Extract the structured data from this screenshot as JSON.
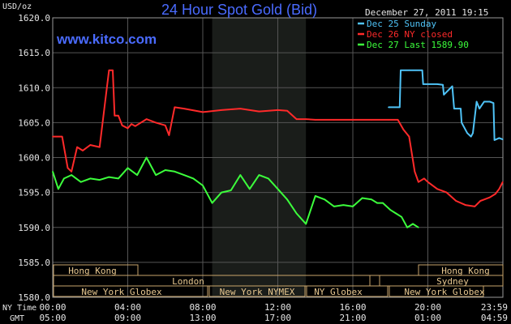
{
  "header": {
    "title": "24 Hour Spot Gold (Bid)",
    "website": "www.kitco.com",
    "timestamp": "December 27, 2011 19:15",
    "y_unit": "USD/oz"
  },
  "legend": [
    {
      "label": "Dec 25 Sunday",
      "color": "#4fc3f7"
    },
    {
      "label": "Dec 26 NY closed",
      "color": "#ff2a2a"
    },
    {
      "label": "Dec 27 Last 1589.90",
      "color": "#3cff3c"
    }
  ],
  "time_axes": {
    "ny_label": "NY Time",
    "gmt_label": "GMT",
    "ny_ticks": [
      "00:00",
      "04:00",
      "08:00",
      "12:00",
      "16:00",
      "20:00",
      "23:59"
    ],
    "gmt_ticks": [
      "05:00",
      "09:00",
      "13:00",
      "17:00",
      "21:00",
      "01:00",
      "04:59"
    ]
  },
  "sessions": {
    "hong_kong_1": "Hong Kong",
    "hong_kong_2": "Hong Kong",
    "london": "London",
    "sydney": "Sydney",
    "nyg_1": "New York Globex",
    "nymex": "New York NYMEX",
    "nyg_2": "NY Globex",
    "nyg_3": "New York Globex"
  },
  "chart_data": {
    "type": "line",
    "ylim": [
      1580,
      1620
    ],
    "xlim": [
      0,
      24
    ],
    "yticks": [
      "1620.0",
      "1615.0",
      "1610.0",
      "1605.0",
      "1600.0",
      "1595.0",
      "1590.0",
      "1585.0",
      "1580.0"
    ],
    "shaded_hours": [
      8.5,
      13.5
    ],
    "series": [
      {
        "name": "Dec 25 Sunday",
        "color": "#4fc3f7",
        "x": [
          17.9,
          18.5,
          18.55,
          19.0,
          19.7,
          19.75,
          20.5,
          20.8,
          20.85,
          21.3,
          21.4,
          21.75,
          21.8,
          22.1,
          22.3,
          22.4,
          22.6,
          22.75,
          23.0,
          23.3,
          23.5,
          23.55,
          23.8,
          23.99
        ],
        "y": [
          1607.2,
          1607.2,
          1612.5,
          1612.5,
          1612.5,
          1610.5,
          1610.5,
          1610.4,
          1609.0,
          1610.2,
          1607.0,
          1607.0,
          1605.0,
          1603.5,
          1603.0,
          1603.5,
          1608.0,
          1607.0,
          1608.0,
          1608.0,
          1607.8,
          1602.5,
          1602.8,
          1602.6
        ]
      },
      {
        "name": "Dec 26 NY closed",
        "color": "#ff2a2a",
        "x": [
          0,
          0.5,
          0.8,
          1.0,
          1.3,
          1.6,
          2.0,
          2.5,
          3.0,
          3.2,
          3.3,
          3.5,
          3.7,
          4.0,
          4.2,
          4.4,
          5.0,
          5.5,
          6.0,
          6.2,
          6.5,
          7.0,
          8.0,
          9.0,
          10.0,
          11.0,
          12.0,
          12.5,
          13.0,
          13.5,
          14.0,
          15.0,
          16.0,
          17.0,
          17.9,
          18.4,
          18.7,
          19.0,
          19.3,
          19.5,
          19.8,
          20.0,
          20.5,
          21.0,
          21.5,
          22.0,
          22.5,
          22.8,
          23.0,
          23.3,
          23.6,
          23.8,
          23.99
        ],
        "y": [
          1603.0,
          1603.0,
          1598.5,
          1598.0,
          1601.5,
          1601.0,
          1601.8,
          1601.5,
          1612.5,
          1612.5,
          1606.0,
          1606.0,
          1604.6,
          1604.2,
          1604.8,
          1604.5,
          1605.5,
          1605.0,
          1604.6,
          1603.2,
          1607.2,
          1607.0,
          1606.5,
          1606.8,
          1607.0,
          1606.6,
          1606.8,
          1606.7,
          1605.5,
          1605.5,
          1605.4,
          1605.4,
          1605.4,
          1605.4,
          1605.4,
          1605.4,
          1604.0,
          1603.0,
          1598.0,
          1596.5,
          1597.0,
          1596.5,
          1595.5,
          1595.0,
          1593.8,
          1593.2,
          1593.0,
          1593.8,
          1594.0,
          1594.3,
          1594.8,
          1595.5,
          1596.5
        ]
      },
      {
        "name": "Dec 27 Last 1589.90",
        "color": "#3cff3c",
        "x": [
          0,
          0.3,
          0.6,
          1.0,
          1.5,
          2.0,
          2.5,
          3.0,
          3.5,
          4.0,
          4.5,
          5.0,
          5.5,
          6.0,
          6.5,
          7.0,
          7.5,
          8.0,
          8.5,
          9.0,
          9.5,
          10.0,
          10.5,
          11.0,
          11.5,
          12.0,
          12.5,
          13.0,
          13.5,
          14.0,
          14.5,
          15.0,
          15.5,
          16.0,
          16.5,
          17.0,
          17.3,
          17.6,
          18.0,
          18.3,
          18.6,
          18.9,
          19.2,
          19.5
        ],
        "y": [
          1598.0,
          1595.5,
          1597.0,
          1597.5,
          1596.5,
          1597.0,
          1596.8,
          1597.2,
          1597.0,
          1598.5,
          1597.5,
          1600.0,
          1597.5,
          1598.2,
          1598.0,
          1597.5,
          1597.0,
          1596.0,
          1593.5,
          1595.0,
          1595.3,
          1597.5,
          1595.5,
          1597.5,
          1597.0,
          1595.5,
          1594.0,
          1592.0,
          1590.5,
          1594.5,
          1594.0,
          1593.0,
          1593.2,
          1593.0,
          1594.2,
          1594.0,
          1593.5,
          1593.5,
          1592.5,
          1592.0,
          1591.5,
          1590.0,
          1590.5,
          1590.0
        ]
      }
    ]
  }
}
